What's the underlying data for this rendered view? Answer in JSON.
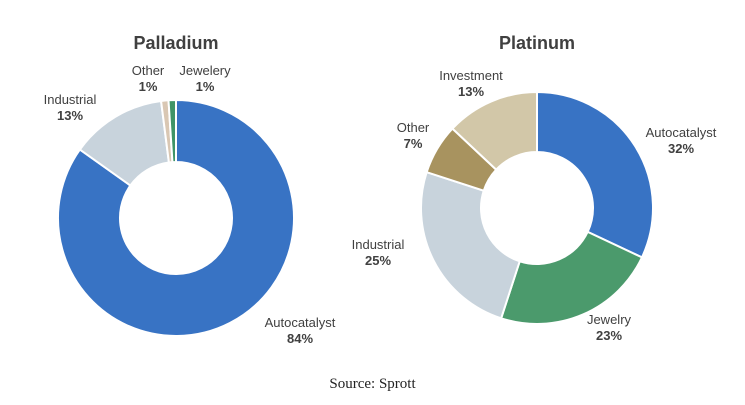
{
  "chart_data": [
    {
      "type": "pie",
      "title": "Palladium",
      "categories": [
        "Autocatalyst",
        "Industrial",
        "Other",
        "Jewelery"
      ],
      "values": [
        84,
        13,
        1,
        1
      ],
      "labels": [
        "84%",
        "13%",
        "1%",
        "1%"
      ],
      "colors": [
        "#3873c4",
        "#c8d3dc",
        "#d9c7b3",
        "#3f9467"
      ]
    },
    {
      "type": "pie",
      "title": "Platinum",
      "categories": [
        "Autocatalyst",
        "Jewelry",
        "Industrial",
        "Other",
        "Investment"
      ],
      "values": [
        32,
        23,
        25,
        7,
        13
      ],
      "labels": [
        "32%",
        "23%",
        "25%",
        "7%",
        "13%"
      ],
      "colors": [
        "#3873c4",
        "#4b9a6c",
        "#c8d3dc",
        "#a8935f",
        "#d2c7a8"
      ]
    }
  ],
  "source": "Source: Sprott"
}
